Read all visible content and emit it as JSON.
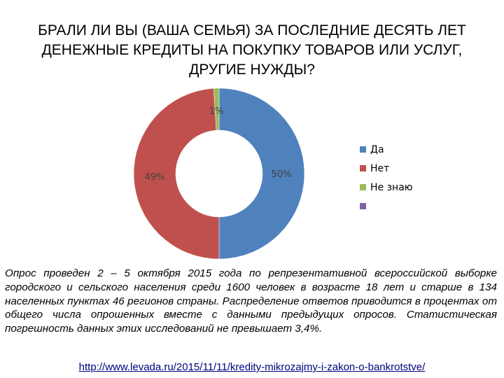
{
  "chart_data": {
    "type": "pie",
    "variant": "doughnut",
    "title_lines": [
      "БРАЛИ ЛИ ВЫ (ВАША СЕМЬЯ) ЗА ПОСЛЕДНИЕ ДЕСЯТЬ ЛЕТ",
      "ДЕНЕЖНЫЕ КРЕДИТЫ НА ПОКУПКУ ТОВАРОВ ИЛИ УСЛУГ,",
      "ДРУГИЕ НУЖДЫ?"
    ],
    "slices": [
      {
        "label": "Да",
        "value": 50,
        "data_label": "50%",
        "color": "#4F81BD"
      },
      {
        "label": "Нет",
        "value": 49,
        "data_label": "49%",
        "color": "#C0504D"
      },
      {
        "label": "Не знаю",
        "value": 1,
        "data_label": "1%",
        "color": "#9BBB59"
      }
    ],
    "legend": {
      "placement": "right",
      "extra_entry": {
        "label": "",
        "color": "#8064A2"
      }
    }
  },
  "note": "Опрос проведен 2 – 5 октября 2015 года по репрезентативной всероссийской выборке городского и сельского населения среди 1600 человек в возрасте 18 лет и старше в 134 населенных пунктах 46 регионов страны. Распределение ответов приводится в процентах от общего числа опрошенных вместе с данными предыдущих опросов. Статистическая погрешность данных этих исследований не превышает 3,4%.",
  "source_link": "http://www.levada.ru/2015/11/11/kredity-mikrozajmy-i-zakon-o-bankrotstve/"
}
